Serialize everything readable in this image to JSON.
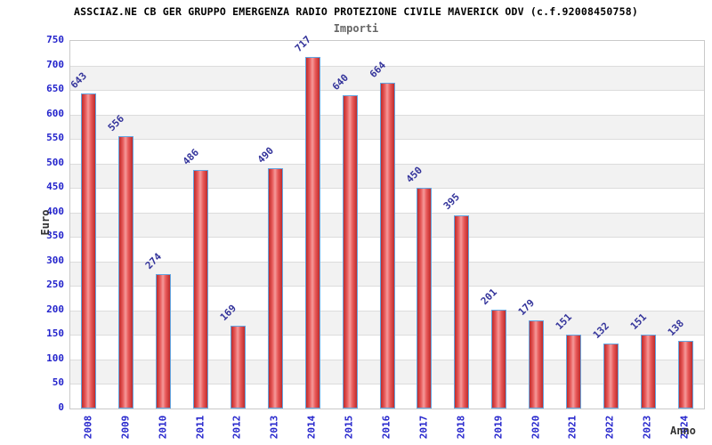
{
  "title": "ASSCIAZ.NE CB GER GRUPPO EMERGENZA RADIO PROTEZIONE CIVILE MAVERICK ODV (c.f.92008450758)",
  "subtitle": "Importi",
  "chart_data": {
    "type": "bar",
    "title": "ASSCIAZ.NE CB GER GRUPPO EMERGENZA RADIO PROTEZIONE CIVILE MAVERICK ODV (c.f.92008450758)",
    "subtitle": "Importi",
    "xlabel": "Anno",
    "ylabel": "Euro",
    "categories": [
      "2008",
      "2009",
      "2010",
      "2011",
      "2012",
      "2013",
      "2014",
      "2015",
      "2016",
      "2017",
      "2018",
      "2019",
      "2020",
      "2021",
      "2022",
      "2023",
      "2024"
    ],
    "values": [
      643,
      556,
      274,
      486,
      169,
      490,
      717,
      640,
      664,
      450,
      395,
      201,
      179,
      151,
      132,
      151,
      138
    ],
    "ylim": [
      0,
      750
    ],
    "ytick_step": 50,
    "grid": true,
    "legend": "none",
    "colors": {
      "tick_label": "#2424cc",
      "value_label": "#34349b",
      "bar_border": "#63a5e0",
      "bar_edge": "#bf2b2b",
      "bar_mid": "#e85a5a",
      "bar_center": "#f59a9a",
      "band_gray": "#f2f2f2",
      "band_white": "#ffffff",
      "gridline": "#dcdcdc",
      "axis_text": "#333333",
      "title_text": "#000000",
      "subtitle_text": "#666666"
    }
  }
}
